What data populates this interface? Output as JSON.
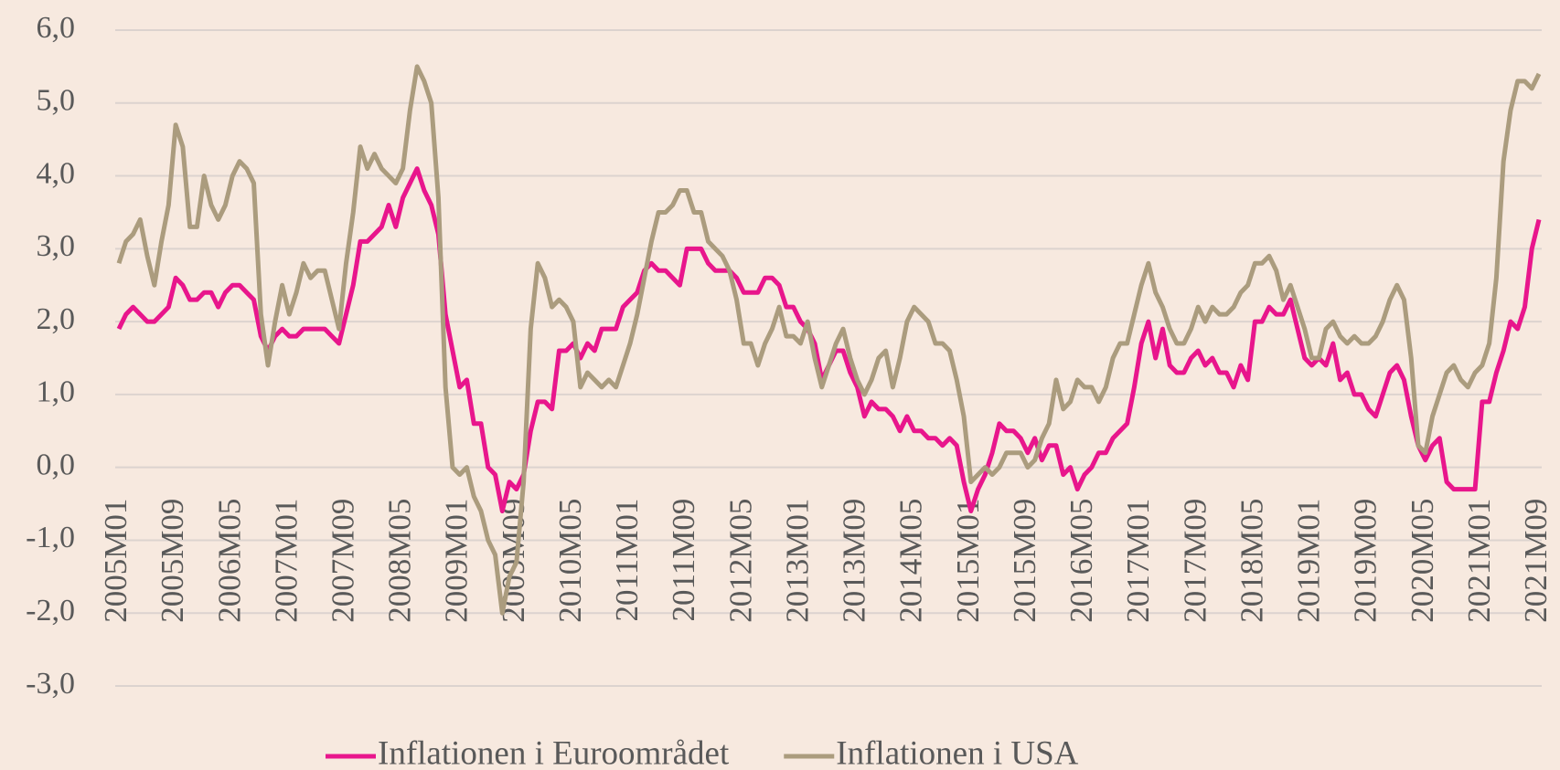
{
  "chart_data": {
    "type": "line",
    "categories": [
      "2005M01",
      null,
      null,
      null,
      null,
      null,
      null,
      null,
      "2005M09",
      null,
      null,
      null,
      null,
      null,
      null,
      null,
      "2006M05",
      null,
      null,
      null,
      null,
      null,
      null,
      null,
      "2007M01",
      null,
      null,
      null,
      null,
      null,
      null,
      null,
      "2007M09",
      null,
      null,
      null,
      null,
      null,
      null,
      null,
      "2008M05",
      null,
      null,
      null,
      null,
      null,
      null,
      null,
      "2009M01",
      null,
      null,
      null,
      null,
      null,
      null,
      null,
      "2009M09",
      null,
      null,
      null,
      null,
      null,
      null,
      null,
      "2010M05",
      null,
      null,
      null,
      null,
      null,
      null,
      null,
      "2011M01",
      null,
      null,
      null,
      null,
      null,
      null,
      null,
      "2011M09",
      null,
      null,
      null,
      null,
      null,
      null,
      null,
      "2012M05",
      null,
      null,
      null,
      null,
      null,
      null,
      null,
      "2013M01",
      null,
      null,
      null,
      null,
      null,
      null,
      null,
      "2013M09",
      null,
      null,
      null,
      null,
      null,
      null,
      null,
      "2014M05",
      null,
      null,
      null,
      null,
      null,
      null,
      null,
      "2015M01",
      null,
      null,
      null,
      null,
      null,
      null,
      null,
      "2015M09",
      null,
      null,
      null,
      null,
      null,
      null,
      null,
      "2016M05",
      null,
      null,
      null,
      null,
      null,
      null,
      null,
      "2017M01",
      null,
      null,
      null,
      null,
      null,
      null,
      null,
      "2017M09",
      null,
      null,
      null,
      null,
      null,
      null,
      null,
      "2018M05",
      null,
      null,
      null,
      null,
      null,
      null,
      null,
      "2019M01",
      null,
      null,
      null,
      null,
      null,
      null,
      null,
      "2019M09",
      null,
      null,
      null,
      null,
      null,
      null,
      null,
      "2020M05",
      null,
      null,
      null,
      null,
      null,
      null,
      null,
      "2021M01",
      null,
      null,
      null,
      null,
      null,
      null,
      null,
      "2021M09"
    ],
    "series": [
      {
        "name": "Inflationen i Euroområdet",
        "color": "#e8168c",
        "values": [
          1.9,
          2.1,
          2.2,
          2.1,
          2.0,
          2.0,
          2.1,
          2.2,
          2.6,
          2.5,
          2.3,
          2.3,
          2.4,
          2.4,
          2.2,
          2.4,
          2.5,
          2.5,
          2.4,
          2.3,
          1.8,
          1.6,
          1.8,
          1.9,
          1.8,
          1.8,
          1.9,
          1.9,
          1.9,
          1.9,
          1.8,
          1.7,
          2.1,
          2.5,
          3.1,
          3.1,
          3.2,
          3.3,
          3.6,
          3.3,
          3.7,
          3.9,
          4.1,
          3.8,
          3.6,
          3.2,
          2.1,
          1.6,
          1.1,
          1.2,
          0.6,
          0.6,
          0.0,
          -0.1,
          -0.6,
          -0.2,
          -0.3,
          -0.1,
          0.5,
          0.9,
          0.9,
          0.8,
          1.6,
          1.6,
          1.7,
          1.5,
          1.7,
          1.6,
          1.9,
          1.9,
          1.9,
          2.2,
          2.3,
          2.4,
          2.7,
          2.8,
          2.7,
          2.7,
          2.6,
          2.5,
          3.0,
          3.0,
          3.0,
          2.8,
          2.7,
          2.7,
          2.7,
          2.6,
          2.4,
          2.4,
          2.4,
          2.6,
          2.6,
          2.5,
          2.2,
          2.2,
          2.0,
          1.9,
          1.7,
          1.2,
          1.4,
          1.6,
          1.6,
          1.3,
          1.1,
          0.7,
          0.9,
          0.8,
          0.8,
          0.7,
          0.5,
          0.7,
          0.5,
          0.5,
          0.4,
          0.4,
          0.3,
          0.4,
          0.3,
          -0.2,
          -0.6,
          -0.3,
          -0.1,
          0.2,
          0.6,
          0.5,
          0.5,
          0.4,
          0.2,
          0.4,
          0.1,
          0.3,
          0.3,
          -0.1,
          0.0,
          -0.3,
          -0.1,
          0.0,
          0.2,
          0.2,
          0.4,
          0.5,
          0.6,
          1.1,
          1.7,
          2.0,
          1.5,
          1.9,
          1.4,
          1.3,
          1.3,
          1.5,
          1.6,
          1.4,
          1.5,
          1.3,
          1.3,
          1.1,
          1.4,
          1.2,
          2.0,
          2.0,
          2.2,
          2.1,
          2.1,
          2.3,
          1.9,
          1.5,
          1.4,
          1.5,
          1.4,
          1.7,
          1.2,
          1.3,
          1.0,
          1.0,
          0.8,
          0.7,
          1.0,
          1.3,
          1.4,
          1.2,
          0.7,
          0.3,
          0.1,
          0.3,
          0.4,
          -0.2,
          -0.3,
          -0.3,
          -0.3,
          -0.3,
          0.9,
          0.9,
          1.3,
          1.6,
          2.0,
          1.9,
          2.2,
          3.0,
          3.4
        ]
      },
      {
        "name": "Inflationen i USA",
        "color": "#ab9c7e",
        "values": [
          2.8,
          3.1,
          3.2,
          3.4,
          2.9,
          2.5,
          3.1,
          3.6,
          4.7,
          4.4,
          3.3,
          3.3,
          4.0,
          3.6,
          3.4,
          3.6,
          4.0,
          4.2,
          4.1,
          3.9,
          2.1,
          1.4,
          2.0,
          2.5,
          2.1,
          2.4,
          2.8,
          2.6,
          2.7,
          2.7,
          2.3,
          1.9,
          2.8,
          3.5,
          4.4,
          4.1,
          4.3,
          4.1,
          4.0,
          3.9,
          4.1,
          4.9,
          5.5,
          5.3,
          5.0,
          3.7,
          1.1,
          0.0,
          -0.1,
          0.0,
          -0.4,
          -0.6,
          -1.0,
          -1.2,
          -2.0,
          -1.5,
          -1.3,
          -0.2,
          1.9,
          2.8,
          2.6,
          2.2,
          2.3,
          2.2,
          2.0,
          1.1,
          1.3,
          1.2,
          1.1,
          1.2,
          1.1,
          1.4,
          1.7,
          2.1,
          2.6,
          3.1,
          3.5,
          3.5,
          3.6,
          3.8,
          3.8,
          3.5,
          3.5,
          3.1,
          3.0,
          2.9,
          2.7,
          2.3,
          1.7,
          1.7,
          1.4,
          1.7,
          1.9,
          2.2,
          1.8,
          1.8,
          1.7,
          2.0,
          1.5,
          1.1,
          1.4,
          1.7,
          1.9,
          1.5,
          1.2,
          1.0,
          1.2,
          1.5,
          1.6,
          1.1,
          1.5,
          2.0,
          2.2,
          2.1,
          2.0,
          1.7,
          1.7,
          1.6,
          1.2,
          0.7,
          -0.2,
          -0.1,
          0.0,
          -0.1,
          0.0,
          0.2,
          0.2,
          0.2,
          0.0,
          0.1,
          0.4,
          0.6,
          1.2,
          0.8,
          0.9,
          1.2,
          1.1,
          1.1,
          0.9,
          1.1,
          1.5,
          1.7,
          1.7,
          2.1,
          2.5,
          2.8,
          2.4,
          2.2,
          1.9,
          1.7,
          1.7,
          1.9,
          2.2,
          2.0,
          2.2,
          2.1,
          2.1,
          2.2,
          2.4,
          2.5,
          2.8,
          2.8,
          2.9,
          2.7,
          2.3,
          2.5,
          2.2,
          1.9,
          1.5,
          1.5,
          1.9,
          2.0,
          1.8,
          1.7,
          1.8,
          1.7,
          1.7,
          1.8,
          2.0,
          2.3,
          2.5,
          2.3,
          1.5,
          0.3,
          0.2,
          0.7,
          1.0,
          1.3,
          1.4,
          1.2,
          1.1,
          1.3,
          1.4,
          1.7,
          2.6,
          4.2,
          4.9,
          5.3,
          5.3,
          5.2,
          5.4
        ]
      }
    ],
    "ylim": [
      -3,
      6
    ],
    "yticks": [
      {
        "value": -3,
        "label": "-3,0"
      },
      {
        "value": -2,
        "label": "-2,0"
      },
      {
        "value": -1,
        "label": "-1,0"
      },
      {
        "value": 0,
        "label": "0,0"
      },
      {
        "value": 1,
        "label": "1,0"
      },
      {
        "value": 2,
        "label": "2,0"
      },
      {
        "value": 3,
        "label": "3,0"
      },
      {
        "value": 4,
        "label": "4,0"
      },
      {
        "value": 5,
        "label": "5,0"
      },
      {
        "value": 6,
        "label": "6,0"
      }
    ],
    "grid": true,
    "legend": "bottom"
  }
}
